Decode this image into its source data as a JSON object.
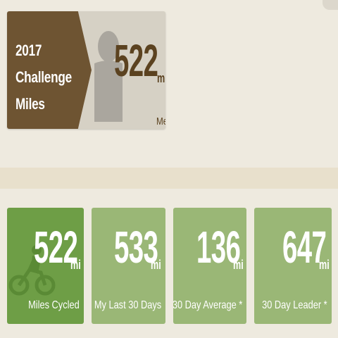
{
  "colors": {
    "background": "#eeeadf",
    "challenge_arrow": "#6e5432",
    "challenge_card": "#d6d1c5",
    "primary_green": "#6e9e46",
    "light_green": "#9ab776"
  },
  "challenge": {
    "title_lines": [
      "2017",
      "Challenge",
      "Miles"
    ],
    "value": "522",
    "unit": "mi",
    "owner": "Me",
    "avatar_icon": "person-silhouette-icon"
  },
  "stats": [
    {
      "value": "522",
      "unit": "mi",
      "label": "Miles Cycled",
      "icon": "bicycle-rider-icon"
    },
    {
      "value": "533",
      "unit": "mi",
      "label": "My Last 30 Days"
    },
    {
      "value": "136",
      "unit": "mi",
      "label": "30 Day Average *"
    },
    {
      "value": "647",
      "unit": "mi",
      "label": "30 Day Leader *"
    }
  ]
}
